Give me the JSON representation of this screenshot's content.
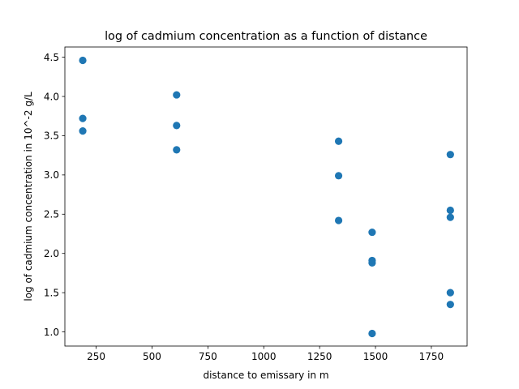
{
  "chart_data": {
    "type": "scatter",
    "title": "log of cadmium concentration as a function of distance",
    "xlabel": "distance to emissary in m",
    "ylabel": "log of cadmium concentration in 10^-2 g/L",
    "xlim": [
      110,
      1910
    ],
    "ylim": [
      0.82,
      4.63
    ],
    "xticks": [
      250,
      500,
      750,
      1000,
      1250,
      1500,
      1750
    ],
    "xtick_labels": [
      "250",
      "500",
      "750",
      "1000",
      "1250",
      "1500",
      "1750"
    ],
    "yticks": [
      1.0,
      1.5,
      2.0,
      2.5,
      3.0,
      3.5,
      4.0,
      4.5
    ],
    "ytick_labels": [
      "1.0",
      "1.5",
      "2.0",
      "2.5",
      "3.0",
      "3.5",
      "4.0",
      "4.5"
    ],
    "grid": false,
    "marker_color": "#1f77b4",
    "points": [
      {
        "x": 190,
        "y": 4.46
      },
      {
        "x": 190,
        "y": 3.72
      },
      {
        "x": 190,
        "y": 3.56
      },
      {
        "x": 610,
        "y": 4.02
      },
      {
        "x": 610,
        "y": 3.63
      },
      {
        "x": 610,
        "y": 3.32
      },
      {
        "x": 1335,
        "y": 3.43
      },
      {
        "x": 1335,
        "y": 2.99
      },
      {
        "x": 1335,
        "y": 2.42
      },
      {
        "x": 1485,
        "y": 2.27
      },
      {
        "x": 1485,
        "y": 1.91
      },
      {
        "x": 1485,
        "y": 1.88
      },
      {
        "x": 1485,
        "y": 0.98
      },
      {
        "x": 1835,
        "y": 3.26
      },
      {
        "x": 1835,
        "y": 2.55
      },
      {
        "x": 1835,
        "y": 2.46
      },
      {
        "x": 1835,
        "y": 1.5
      },
      {
        "x": 1835,
        "y": 1.35
      }
    ]
  }
}
